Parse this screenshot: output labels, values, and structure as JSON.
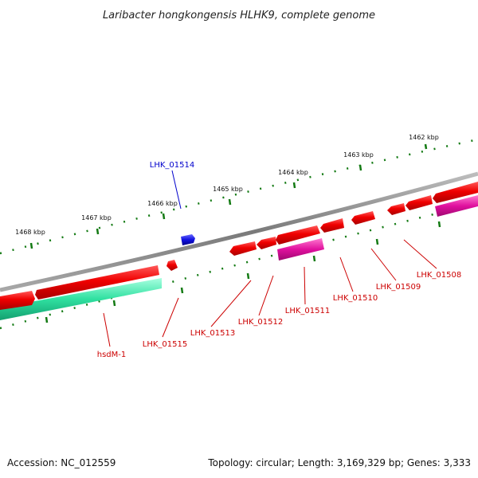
{
  "title": "Laribacter hongkongensis HLHK9, complete genome",
  "footer": {
    "accession": "Accession: NC_012559",
    "topology": "Topology: circular; Length: 3,169,329 bp; Genes: 3,333"
  },
  "colors": {
    "backbone": "#8c8c8c",
    "gene_red": "#e80000",
    "gene_magenta": "#e0109e",
    "gene_teal": "#2fe0a0",
    "gene_blue": "#1010e0",
    "label_red": "#cc0000",
    "label_blue": "#0000cc",
    "tick_green": "#137a13"
  },
  "ruler": {
    "unit": "kbp",
    "ticks": [
      "1462 kbp",
      "1463 kbp",
      "1464 kbp",
      "1465 kbp",
      "1466 kbp",
      "1467 kbp",
      "1468 kbp"
    ]
  },
  "gene_labels": [
    {
      "id": "LHK_01514",
      "color": "blue"
    },
    {
      "id": "hsdM-1",
      "color": "red"
    },
    {
      "id": "LHK_01515",
      "color": "red"
    },
    {
      "id": "LHK_01513",
      "color": "red"
    },
    {
      "id": "LHK_01512",
      "color": "red"
    },
    {
      "id": "LHK_01511",
      "color": "red"
    },
    {
      "id": "LHK_01510",
      "color": "red"
    },
    {
      "id": "LHK_01509",
      "color": "red"
    },
    {
      "id": "LHK_01508",
      "color": "red"
    }
  ]
}
